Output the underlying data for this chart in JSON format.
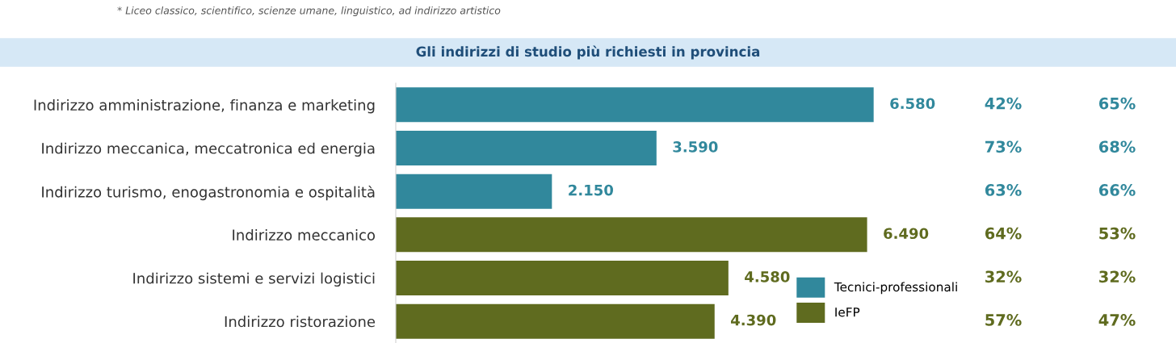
{
  "chart_data": {
    "type": "bar",
    "orientation": "horizontal",
    "title": "Gli indirizzi di studio più richiesti in provincia",
    "categories": [
      "Indirizzo amministrazione, finanza e marketing",
      "Indirizzo meccanica, meccatronica ed energia",
      "Indirizzo turismo, enogastronomia e ospitalità",
      "Indirizzo meccanico",
      "Indirizzo sistemi e servizi logistici",
      "Indirizzo ristorazione"
    ],
    "series": [
      {
        "name": "Tecnici-professionali",
        "color": "#31889c",
        "values": [
          6580,
          3590,
          2150,
          null,
          null,
          null
        ],
        "value_labels": [
          "6.580",
          "3.590",
          "2.150",
          null,
          null,
          null
        ]
      },
      {
        "name": "IeFP",
        "color": "#5f6b1f",
        "values": [
          null,
          null,
          null,
          6490,
          4580,
          4390
        ],
        "value_labels": [
          null,
          null,
          null,
          "6.490",
          "4.580",
          "4.390"
        ]
      }
    ],
    "annotations": [
      "* Liceo classico, scientifico, scienze umane, linguistico, ad indirizzo artistico",
      "42%",
      "65%",
      "73%",
      "68%",
      "63%",
      "66%",
      "64%",
      "53%",
      "32%",
      "32%",
      "57%",
      "47%"
    ],
    "legend": "bottom right",
    "grid": false
  }
}
